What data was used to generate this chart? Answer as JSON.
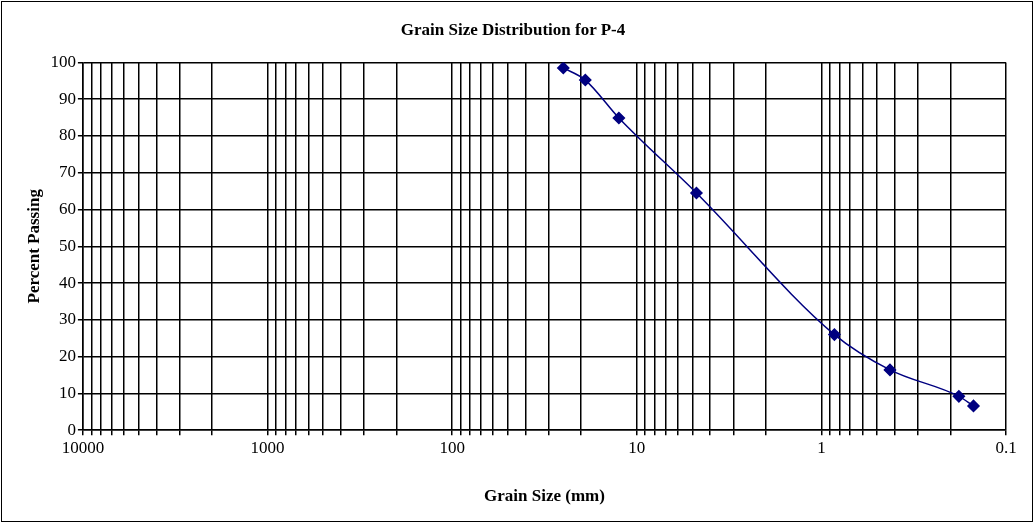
{
  "chart_data": {
    "type": "line",
    "title": "Grain Size Distribution for P-4",
    "xlabel": "Grain Size (mm)",
    "ylabel": "Percent Passing",
    "series": [
      {
        "color": "#000080",
        "x": [
          25,
          19,
          12.5,
          4.75,
          0.85,
          0.425,
          0.18,
          0.15
        ],
        "values": [
          98.5,
          95.2,
          84.9,
          64.5,
          26.0,
          16.4,
          9.2,
          6.6
        ]
      }
    ],
    "log": "x",
    "xlim": [
      10000,
      0.1
    ],
    "xticks": [
      10000,
      {
        "value": 9000,
        "label": null
      },
      {
        "value": 8000,
        "label": null
      },
      {
        "value": 7000,
        "label": null
      },
      {
        "value": 6000,
        "label": null
      },
      {
        "value": 5000,
        "label": null
      },
      {
        "value": 4000,
        "label": null
      },
      {
        "value": 3000,
        "label": null
      },
      {
        "value": 2000,
        "label": null
      },
      1000,
      {
        "value": 900,
        "label": null
      },
      {
        "value": 800,
        "label": null
      },
      {
        "value": 700,
        "label": null
      },
      {
        "value": 600,
        "label": null
      },
      {
        "value": 500,
        "label": null
      },
      {
        "value": 400,
        "label": null
      },
      {
        "value": 300,
        "label": null
      },
      {
        "value": 200,
        "label": null
      },
      100,
      {
        "value": 90,
        "label": null
      },
      {
        "value": 80,
        "label": null
      },
      {
        "value": 70,
        "label": null
      },
      {
        "value": 60,
        "label": null
      },
      {
        "value": 50,
        "label": null
      },
      {
        "value": 40,
        "label": null
      },
      {
        "value": 30,
        "label": null
      },
      {
        "value": 20,
        "label": null
      },
      10,
      {
        "value": 9,
        "label": null
      },
      {
        "value": 8,
        "label": null
      },
      {
        "value": 7,
        "label": null
      },
      {
        "value": 6,
        "label": null
      },
      {
        "value": 5,
        "label": null
      },
      {
        "value": 4,
        "label": null
      },
      {
        "value": 3,
        "label": null
      },
      {
        "value": 2,
        "label": null
      },
      1,
      {
        "value": 0.9,
        "label": null
      },
      {
        "value": 0.8,
        "label": null
      },
      {
        "value": 0.7,
        "label": null
      },
      {
        "value": 0.6,
        "label": null
      },
      {
        "value": 0.5,
        "label": null
      },
      {
        "value": 0.4,
        "label": null
      },
      {
        "value": 0.3,
        "label": null
      },
      {
        "value": 0.2,
        "label": null
      },
      0.1
    ],
    "ylim": [
      0,
      100
    ],
    "yticks": [
      0,
      10,
      20,
      30,
      40,
      50,
      60,
      70,
      80,
      90,
      100
    ],
    "grid": true,
    "legend": false,
    "marker": "diamond",
    "line_style": "solid"
  }
}
